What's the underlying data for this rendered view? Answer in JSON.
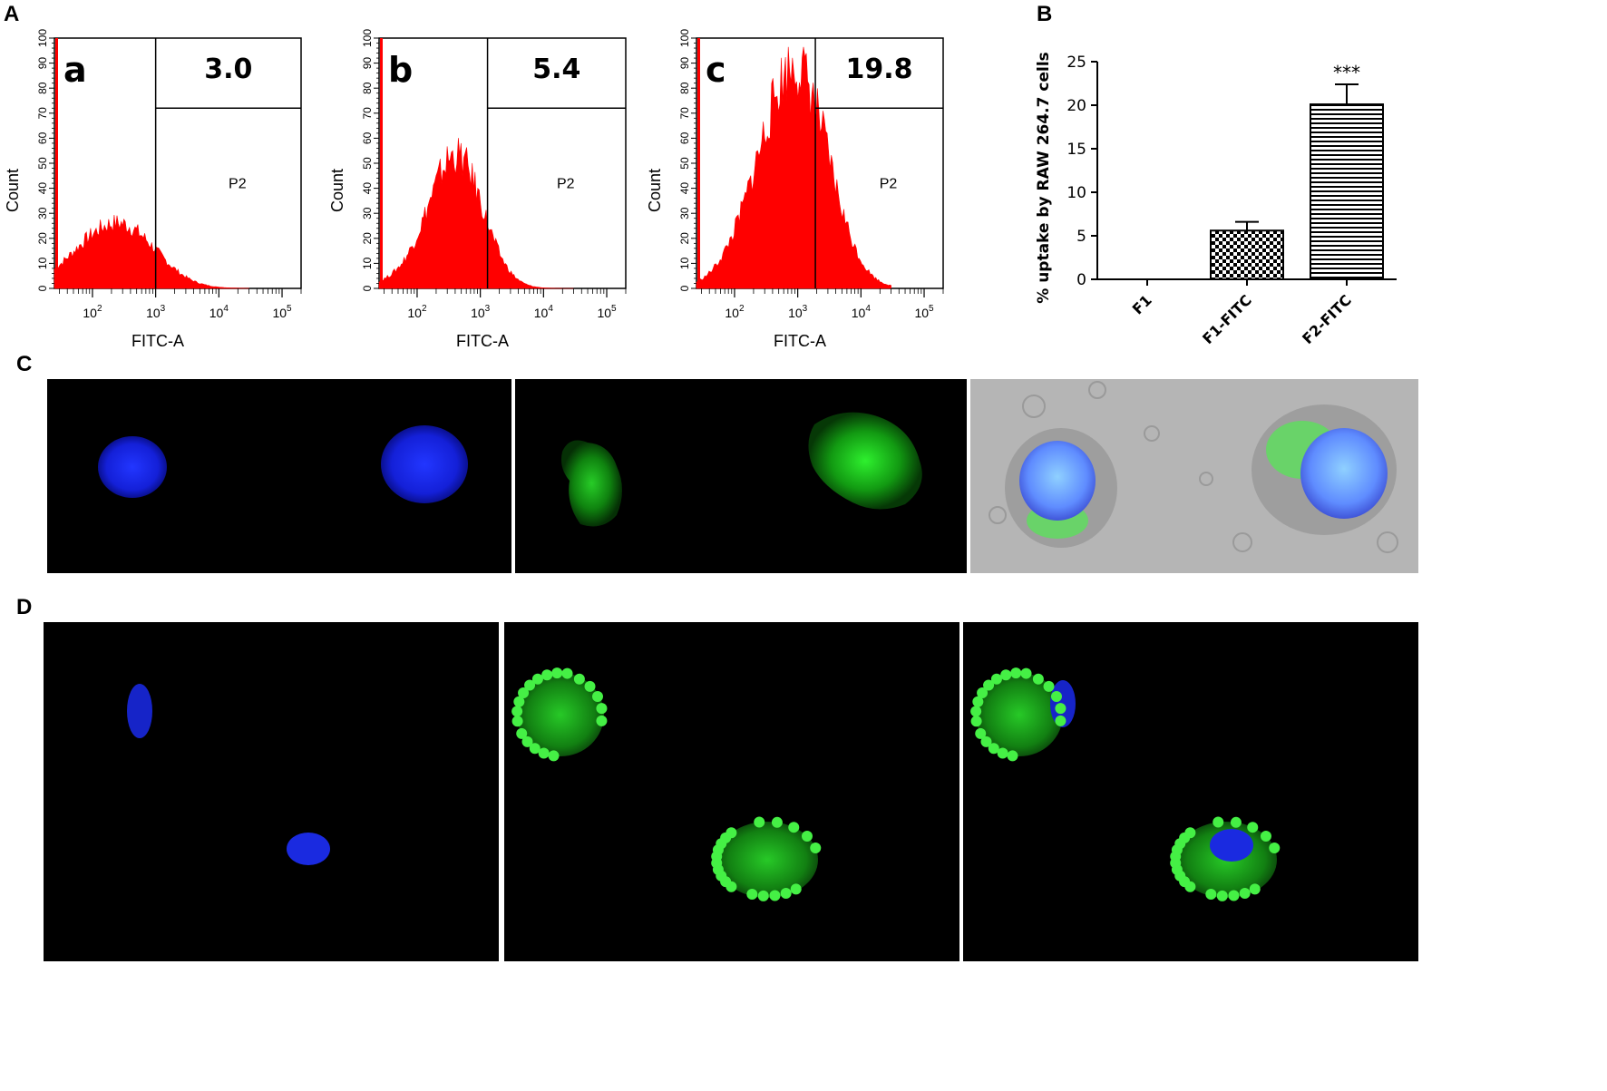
{
  "panel_letters": {
    "A": "A",
    "B": "B",
    "C": "C",
    "D": "D"
  },
  "colors": {
    "histogram": "#ff0000",
    "nucleus": "#1a2bff",
    "fitc": "#22e022",
    "brightfield": "#b3b3b3"
  },
  "chart_data": [
    {
      "type": "area",
      "panel": "a",
      "inset_label": "a",
      "gate_value": "3.0",
      "gate_name": "P2",
      "xlabel": "FITC-A",
      "ylabel": "Count",
      "xscale": "log",
      "xlim": [
        25,
        200000
      ],
      "ylim": [
        0,
        100
      ],
      "y_ticks": [
        "0",
        "10",
        "20",
        "30",
        "40",
        "50",
        "60",
        "70",
        "80",
        "90",
        "100"
      ],
      "x_ticks": [
        "10",
        "10",
        "10",
        "10"
      ],
      "x_tick_exps": [
        "2",
        "3",
        "4",
        "5"
      ],
      "x_tick_values": [
        100,
        1000,
        10000,
        100000
      ],
      "gate_x": 1000,
      "gate_y": 72,
      "peak_x": 300,
      "peak_y": 24,
      "width_decades": 0.55,
      "low_shoulder": 0.25,
      "axis_spike": 100
    },
    {
      "type": "area",
      "panel": "b",
      "inset_label": "b",
      "gate_value": "5.4",
      "gate_name": "P2",
      "xlabel": "FITC-A",
      "ylabel": "Count",
      "xscale": "log",
      "xlim": [
        25,
        200000
      ],
      "ylim": [
        0,
        100
      ],
      "y_ticks": [
        "0",
        "10",
        "20",
        "30",
        "40",
        "50",
        "60",
        "70",
        "80",
        "90",
        "100"
      ],
      "x_ticks": [
        "10",
        "10",
        "10",
        "10"
      ],
      "x_tick_exps": [
        "2",
        "3",
        "4",
        "5"
      ],
      "x_tick_values": [
        100,
        1000,
        10000,
        100000
      ],
      "gate_x": 1300,
      "gate_y": 72,
      "peak_x": 420,
      "peak_y": 52,
      "width_decades": 0.42,
      "low_shoulder": 0.08,
      "axis_spike": 100
    },
    {
      "type": "area",
      "panel": "c",
      "inset_label": "c",
      "gate_value": "19.8",
      "gate_name": "P2",
      "xlabel": "FITC-A",
      "ylabel": "Count",
      "xscale": "log",
      "xlim": [
        25,
        200000
      ],
      "ylim": [
        0,
        100
      ],
      "y_ticks": [
        "0",
        "10",
        "20",
        "30",
        "40",
        "50",
        "60",
        "70",
        "80",
        "90",
        "100"
      ],
      "x_ticks": [
        "10",
        "10",
        "10",
        "10"
      ],
      "x_tick_exps": [
        "2",
        "3",
        "4",
        "5"
      ],
      "x_tick_values": [
        100,
        1000,
        10000,
        100000
      ],
      "gate_x": 1900,
      "gate_y": 72,
      "peak_x": 1000,
      "peak_y": 84,
      "width_decades": 0.5,
      "low_shoulder": 0.18,
      "axis_spike": 100
    },
    {
      "type": "bar",
      "panel": "B",
      "categories": [
        "F1",
        "F1-FITC",
        "F2-FITC"
      ],
      "values": [
        0,
        5.6,
        20.1
      ],
      "errors": [
        0,
        1.0,
        2.3
      ],
      "patterns": [
        "none",
        "checker",
        "hlines"
      ],
      "annotations": [
        "",
        "",
        "***"
      ],
      "ylabel": "% uptake by RAW 264.7 cells",
      "ylim": [
        0,
        25
      ],
      "y_ticks": [
        0,
        5,
        10,
        15,
        20,
        25
      ],
      "y_tick_labels": [
        "0",
        "5",
        "10",
        "15",
        "20",
        "25"
      ]
    }
  ],
  "micrographs": {
    "C": [
      "nucleus-stain",
      "fitc-stain",
      "merged-brightfield"
    ],
    "D": [
      "nucleus-stain",
      "fitc-stain",
      "merged"
    ]
  }
}
